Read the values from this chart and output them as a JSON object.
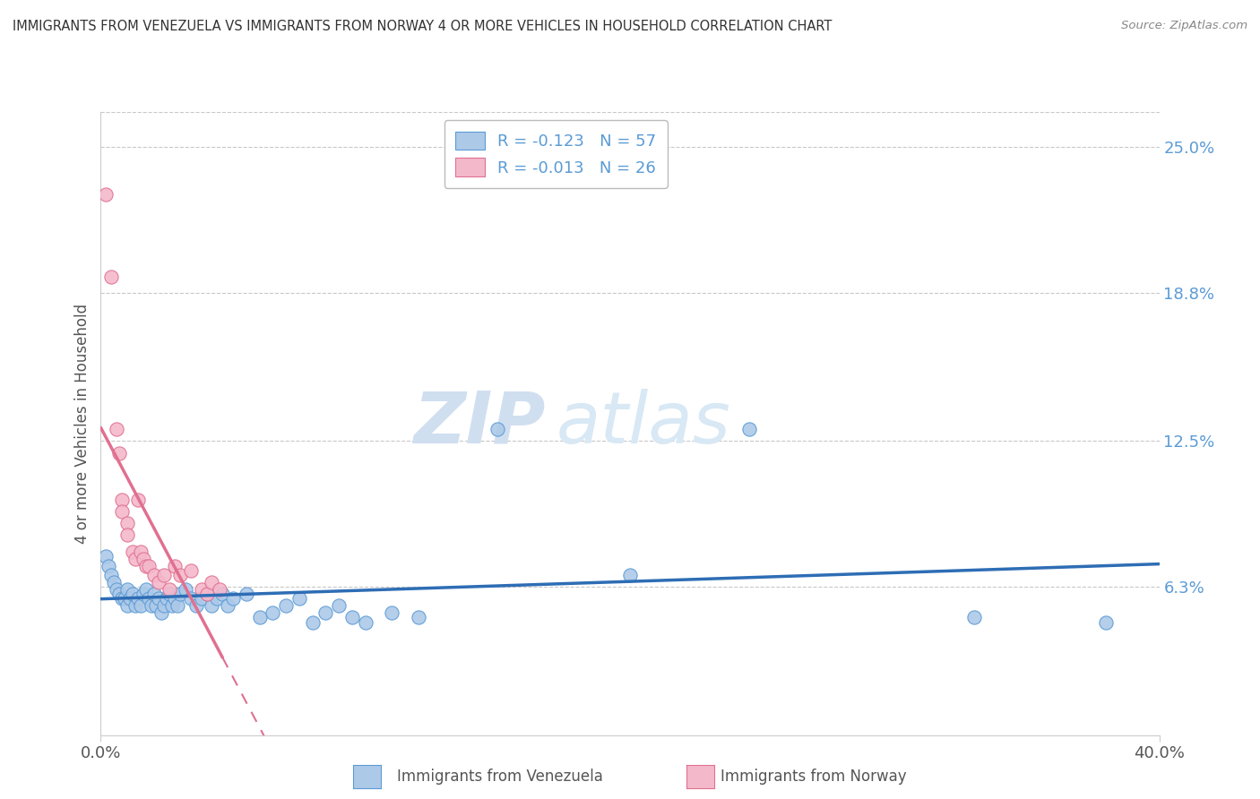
{
  "title": "IMMIGRANTS FROM VENEZUELA VS IMMIGRANTS FROM NORWAY 4 OR MORE VEHICLES IN HOUSEHOLD CORRELATION CHART",
  "source": "Source: ZipAtlas.com",
  "ylabel": "4 or more Vehicles in Household",
  "x_min": 0.0,
  "x_max": 0.4,
  "y_min": 0.0,
  "y_max": 0.265,
  "right_yticks": [
    0.063,
    0.125,
    0.188,
    0.25
  ],
  "right_yticklabels": [
    "6.3%",
    "12.5%",
    "18.8%",
    "25.0%"
  ],
  "legend_series": [
    {
      "label": "Immigrants from Venezuela",
      "color": "#adc9e8",
      "edge": "#5b9bd5",
      "R": "-0.123",
      "N": "57"
    },
    {
      "label": "Immigrants from Norway",
      "color": "#f4b8cb",
      "edge": "#e07090",
      "R": "-0.013",
      "N": "26"
    }
  ],
  "venezuela_scatter": [
    [
      0.002,
      0.076
    ],
    [
      0.003,
      0.072
    ],
    [
      0.004,
      0.068
    ],
    [
      0.005,
      0.065
    ],
    [
      0.006,
      0.062
    ],
    [
      0.007,
      0.06
    ],
    [
      0.008,
      0.058
    ],
    [
      0.009,
      0.058
    ],
    [
      0.01,
      0.055
    ],
    [
      0.01,
      0.062
    ],
    [
      0.011,
      0.058
    ],
    [
      0.012,
      0.06
    ],
    [
      0.013,
      0.055
    ],
    [
      0.014,
      0.058
    ],
    [
      0.015,
      0.055
    ],
    [
      0.016,
      0.06
    ],
    [
      0.017,
      0.062
    ],
    [
      0.018,
      0.058
    ],
    [
      0.019,
      0.055
    ],
    [
      0.02,
      0.06
    ],
    [
      0.021,
      0.055
    ],
    [
      0.022,
      0.058
    ],
    [
      0.023,
      0.052
    ],
    [
      0.024,
      0.055
    ],
    [
      0.025,
      0.058
    ],
    [
      0.026,
      0.06
    ],
    [
      0.027,
      0.055
    ],
    [
      0.028,
      0.058
    ],
    [
      0.029,
      0.055
    ],
    [
      0.03,
      0.06
    ],
    [
      0.032,
      0.062
    ],
    [
      0.034,
      0.058
    ],
    [
      0.036,
      0.055
    ],
    [
      0.038,
      0.058
    ],
    [
      0.04,
      0.06
    ],
    [
      0.042,
      0.055
    ],
    [
      0.044,
      0.058
    ],
    [
      0.046,
      0.06
    ],
    [
      0.048,
      0.055
    ],
    [
      0.05,
      0.058
    ],
    [
      0.055,
      0.06
    ],
    [
      0.06,
      0.05
    ],
    [
      0.065,
      0.052
    ],
    [
      0.07,
      0.055
    ],
    [
      0.075,
      0.058
    ],
    [
      0.08,
      0.048
    ],
    [
      0.085,
      0.052
    ],
    [
      0.09,
      0.055
    ],
    [
      0.095,
      0.05
    ],
    [
      0.1,
      0.048
    ],
    [
      0.11,
      0.052
    ],
    [
      0.12,
      0.05
    ],
    [
      0.15,
      0.13
    ],
    [
      0.2,
      0.068
    ],
    [
      0.245,
      0.13
    ],
    [
      0.33,
      0.05
    ],
    [
      0.38,
      0.048
    ]
  ],
  "norway_scatter": [
    [
      0.002,
      0.23
    ],
    [
      0.004,
      0.195
    ],
    [
      0.006,
      0.13
    ],
    [
      0.007,
      0.12
    ],
    [
      0.008,
      0.1
    ],
    [
      0.008,
      0.095
    ],
    [
      0.01,
      0.09
    ],
    [
      0.01,
      0.085
    ],
    [
      0.012,
      0.078
    ],
    [
      0.013,
      0.075
    ],
    [
      0.014,
      0.1
    ],
    [
      0.015,
      0.078
    ],
    [
      0.016,
      0.075
    ],
    [
      0.017,
      0.072
    ],
    [
      0.018,
      0.072
    ],
    [
      0.02,
      0.068
    ],
    [
      0.022,
      0.065
    ],
    [
      0.024,
      0.068
    ],
    [
      0.026,
      0.062
    ],
    [
      0.028,
      0.072
    ],
    [
      0.03,
      0.068
    ],
    [
      0.034,
      0.07
    ],
    [
      0.038,
      0.062
    ],
    [
      0.04,
      0.06
    ],
    [
      0.042,
      0.065
    ],
    [
      0.045,
      0.062
    ]
  ],
  "venezuela_line_color": "#2e6db5",
  "norway_line_color": "#e07090",
  "background_color": "#ffffff",
  "plot_bg_color": "#ffffff",
  "grid_color": "#c8c8c8",
  "watermark_color": "#d0dff0"
}
